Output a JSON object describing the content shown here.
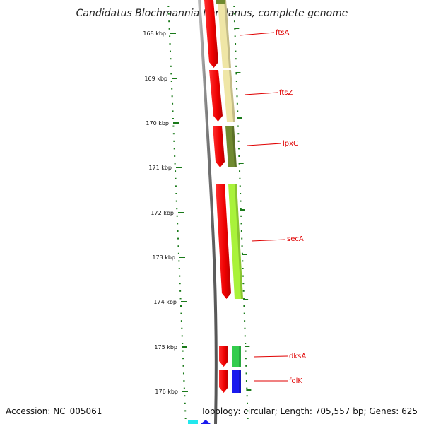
{
  "title": "Candidatus Blochmannia floridanus, complete genome",
  "ticks": [
    {
      "label": "168 kbp"
    },
    {
      "label": "169 kbp"
    },
    {
      "label": "170 kbp"
    },
    {
      "label": "171 kbp"
    },
    {
      "label": "172 kbp"
    },
    {
      "label": "173 kbp"
    },
    {
      "label": "174 kbp"
    },
    {
      "label": "175 kbp"
    },
    {
      "label": "176 kbp"
    }
  ],
  "genes": [
    {
      "name": "ftsA",
      "cog_color": "#efe6a6"
    },
    {
      "name": "ftsZ",
      "cog_color": "#efe6a6"
    },
    {
      "name": "lpxC",
      "cog_color": "#6f8a2f"
    },
    {
      "name": "secA",
      "cog_color": "#a9f23a"
    },
    {
      "name": "dksA",
      "cog_color": "#33cc4d"
    },
    {
      "name": "folK",
      "cog_color": "#1a1aee"
    }
  ],
  "colors": {
    "strand_arrow": "#ee0000",
    "backbone": "#8a8a8a",
    "tick": "#1a7a1a",
    "label_line": "#e00000"
  },
  "footer": {
    "accession": "Accession: NC_005061",
    "stats": "Topology: circular; Length: 705,557 bp; Genes: 625"
  }
}
